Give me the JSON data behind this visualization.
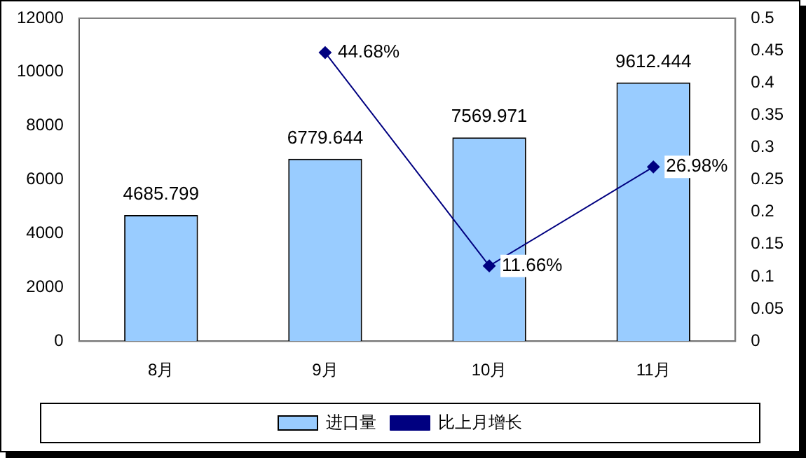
{
  "chart_data": {
    "type": "bar",
    "categories": [
      "8月",
      "9月",
      "10月",
      "11月"
    ],
    "series": [
      {
        "name": "进口量",
        "color": "#99ccff",
        "values": [
          4685.799,
          6779.644,
          7569.971,
          9612.444
        ],
        "value_labels": [
          "4685.799",
          "6779.644",
          "7569.971",
          "9612.444"
        ]
      },
      {
        "name": "比上月增长",
        "type": "line",
        "axis": "y2",
        "color": "#000080",
        "values": [
          null,
          0.4468,
          0.1166,
          0.2698
        ],
        "value_labels": [
          null,
          "44.68%",
          "11.66%",
          "26.98%"
        ]
      }
    ],
    "ylim": [
      0,
      12000
    ],
    "yticks": [
      0,
      2000,
      4000,
      6000,
      8000,
      10000,
      12000
    ],
    "y2lim": [
      0,
      0.5
    ],
    "y2ticks": [
      0,
      0.05,
      0.1,
      0.15,
      0.2,
      0.25,
      0.3,
      0.35,
      0.4,
      0.45,
      0.5
    ],
    "legend": "bottom",
    "marker": "diamond",
    "line_style": "solid",
    "grid": false
  }
}
